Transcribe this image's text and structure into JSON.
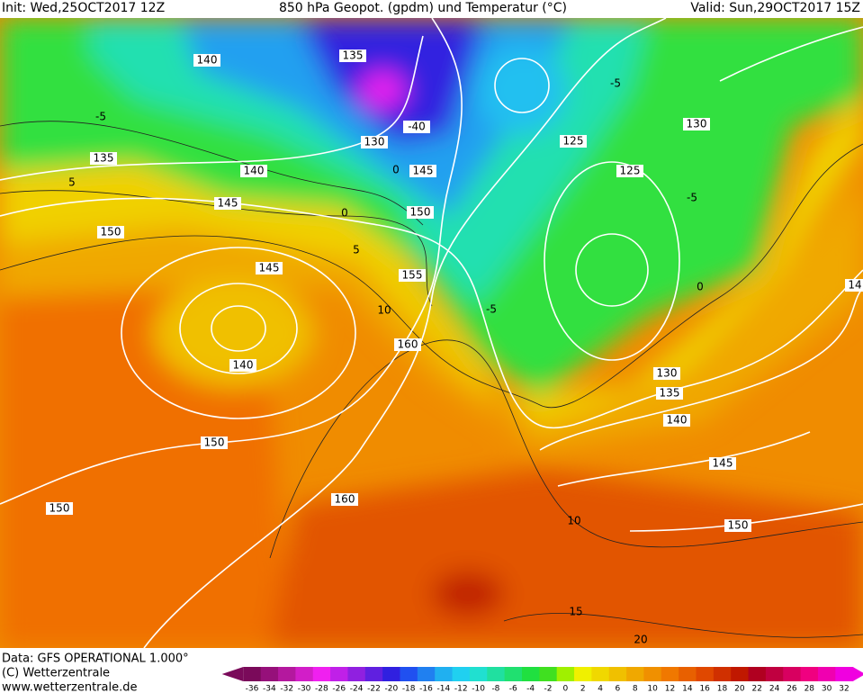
{
  "header": {
    "init": "Init: Wed,25OCT2017 12Z",
    "title": "850 hPa Geopot. (gpdm) und Temperatur (°C)",
    "valid": "Valid: Sun,29OCT2017 15Z"
  },
  "footer": {
    "data": "Data: GFS OPERATIONAL 1.000°",
    "copyright": "(C) Wetterzentrale",
    "url": "www.wetterzentrale.de"
  },
  "colorbar": {
    "labels": [
      -36,
      -34,
      -32,
      -30,
      -28,
      -26,
      -24,
      -22,
      -20,
      -18,
      -16,
      -14,
      -12,
      -10,
      -8,
      -6,
      -4,
      -2,
      0,
      2,
      4,
      6,
      8,
      10,
      12,
      14,
      16,
      18,
      20,
      22,
      24,
      26,
      28,
      30,
      32
    ],
    "colors": [
      "#7a0a5a",
      "#96107a",
      "#b4189e",
      "#d21ec8",
      "#f020f0",
      "#c020e8",
      "#9020e0",
      "#6020e0",
      "#3020e0",
      "#2050f0",
      "#2080f0",
      "#20b0f0",
      "#20d0f0",
      "#20e0d0",
      "#20e0a0",
      "#20e070",
      "#20e040",
      "#40e020",
      "#a0f000",
      "#f0f000",
      "#f0d800",
      "#f0c000",
      "#f0a800",
      "#f09000",
      "#f07800",
      "#e86000",
      "#e04800",
      "#d03000",
      "#c01800",
      "#b00020",
      "#c00040",
      "#d80060",
      "#f00080",
      "#f000b0",
      "#f000e0"
    ]
  },
  "contour_labels": [
    "140",
    "135",
    "130",
    "140",
    "145",
    "135",
    "150",
    "145",
    "140",
    "150",
    "150",
    "160",
    "160",
    "155",
    "150",
    "145",
    "-40",
    "125",
    "125",
    "130",
    "130",
    "135",
    "140",
    "145",
    "150",
    "14"
  ],
  "isotherm_labels": [
    "-5",
    "5",
    "0",
    "5",
    "10",
    "10",
    "15",
    "20",
    "-5",
    "-5",
    "0",
    "-5",
    "0"
  ]
}
